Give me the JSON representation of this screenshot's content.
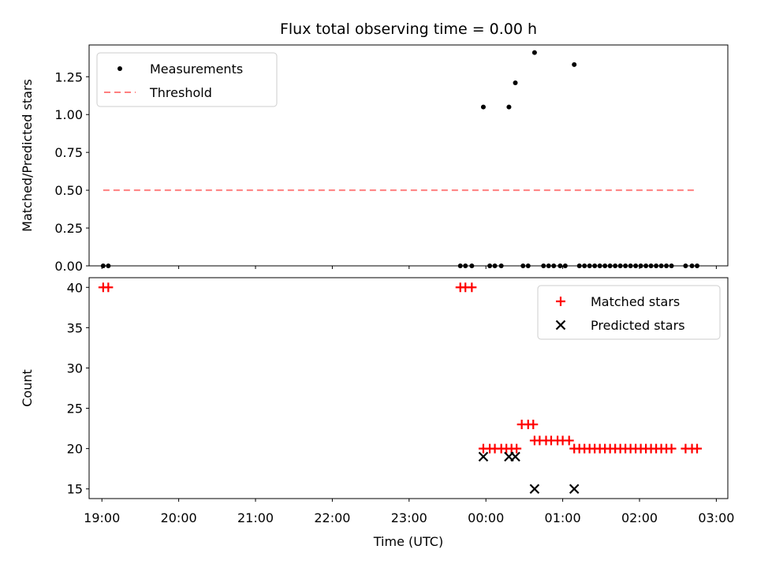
{
  "chart_data": [
    {
      "type": "scatter",
      "title": "Flux total observing time = 0.00 h",
      "xlabel": "",
      "ylabel": "Matched/Predicted stars",
      "x_axis_type": "time",
      "xlim": [
        "18:50",
        "03:09"
      ],
      "ylim": [
        0,
        1.46
      ],
      "yticks": [
        0.0,
        0.25,
        0.5,
        0.75,
        1.0,
        1.25
      ],
      "ytick_labels": [
        "0.00",
        "0.25",
        "0.50",
        "0.75",
        "1.00",
        "1.25"
      ],
      "legend_position": "upper left",
      "series": [
        {
          "name": "Measurements",
          "marker": "dot",
          "color": "#000000",
          "points": [
            [
              "19:01",
              0
            ],
            [
              "19:05",
              0
            ],
            [
              "23:40",
              0
            ],
            [
              "23:44",
              0
            ],
            [
              "23:49",
              0
            ],
            [
              "23:58",
              1.05
            ],
            [
              "00:03",
              0
            ],
            [
              "00:07",
              0
            ],
            [
              "00:12",
              0
            ],
            [
              "00:18",
              1.05
            ],
            [
              "00:23",
              1.21
            ],
            [
              "00:29",
              0
            ],
            [
              "00:33",
              0
            ],
            [
              "00:38",
              1.41
            ],
            [
              "00:45",
              0
            ],
            [
              "00:49",
              0
            ],
            [
              "00:53",
              0
            ],
            [
              "00:58",
              0
            ],
            [
              "01:02",
              0
            ],
            [
              "01:09",
              1.33
            ],
            [
              "01:13",
              0
            ],
            [
              "01:17",
              0
            ],
            [
              "01:21",
              0
            ],
            [
              "01:25",
              0
            ],
            [
              "01:29",
              0
            ],
            [
              "01:33",
              0
            ],
            [
              "01:37",
              0
            ],
            [
              "01:41",
              0
            ],
            [
              "01:45",
              0
            ],
            [
              "01:49",
              0
            ],
            [
              "01:53",
              0
            ],
            [
              "01:57",
              0
            ],
            [
              "02:01",
              0
            ],
            [
              "02:05",
              0
            ],
            [
              "02:09",
              0
            ],
            [
              "02:13",
              0
            ],
            [
              "02:17",
              0
            ],
            [
              "02:21",
              0
            ],
            [
              "02:25",
              0
            ],
            [
              "02:36",
              0
            ],
            [
              "02:41",
              0
            ],
            [
              "02:45",
              0
            ]
          ]
        },
        {
          "name": "Threshold",
          "marker": "dashed-line",
          "color": "#ff7f7f",
          "points": [
            [
              "19:01",
              0.5
            ],
            [
              "02:45",
              0.5
            ]
          ]
        }
      ]
    },
    {
      "type": "scatter",
      "title": "",
      "xlabel": "Time (UTC)",
      "ylabel": "Count",
      "x_axis_type": "time",
      "xlim": [
        "18:50",
        "03:09"
      ],
      "ylim": [
        13.8,
        41.2
      ],
      "yticks": [
        15,
        20,
        25,
        30,
        35,
        40
      ],
      "ytick_labels": [
        "15",
        "20",
        "25",
        "30",
        "35",
        "40"
      ],
      "xticks": [
        "19:00",
        "20:00",
        "21:00",
        "22:00",
        "23:00",
        "00:00",
        "01:00",
        "02:00",
        "03:00"
      ],
      "xtick_labels": [
        "19:00",
        "20:00",
        "21:00",
        "22:00",
        "23:00",
        "00:00",
        "01:00",
        "02:00",
        "03:00"
      ],
      "legend_position": "upper right",
      "series": [
        {
          "name": "Matched stars",
          "marker": "plus",
          "color": "#ff0000",
          "points": [
            [
              "19:01",
              40
            ],
            [
              "19:05",
              40
            ],
            [
              "23:40",
              40
            ],
            [
              "23:44",
              40
            ],
            [
              "23:49",
              40
            ],
            [
              "23:58",
              20
            ],
            [
              "24:03",
              20
            ],
            [
              "24:07",
              20
            ],
            [
              "24:12",
              20
            ],
            [
              "24:16",
              20
            ],
            [
              "24:20",
              20
            ],
            [
              "24:24",
              20
            ],
            [
              "24:28",
              23
            ],
            [
              "24:33",
              23
            ],
            [
              "24:37",
              23
            ],
            [
              "24:38",
              21
            ],
            [
              "24:42",
              21
            ],
            [
              "24:47",
              21
            ],
            [
              "24:51",
              21
            ],
            [
              "24:56",
              21
            ],
            [
              "25:00",
              21
            ],
            [
              "25:05",
              21
            ],
            [
              "25:09",
              20
            ],
            [
              "25:13",
              20
            ],
            [
              "25:17",
              20
            ],
            [
              "25:21",
              20
            ],
            [
              "25:25",
              20
            ],
            [
              "25:29",
              20
            ],
            [
              "25:33",
              20
            ],
            [
              "25:37",
              20
            ],
            [
              "25:41",
              20
            ],
            [
              "25:45",
              20
            ],
            [
              "25:49",
              20
            ],
            [
              "25:53",
              20
            ],
            [
              "25:57",
              20
            ],
            [
              "26:01",
              20
            ],
            [
              "26:05",
              20
            ],
            [
              "26:09",
              20
            ],
            [
              "26:13",
              20
            ],
            [
              "26:17",
              20
            ],
            [
              "26:21",
              20
            ],
            [
              "26:25",
              20
            ],
            [
              "26:36",
              20
            ],
            [
              "26:41",
              20
            ],
            [
              "26:45",
              20
            ]
          ]
        },
        {
          "name": "Predicted stars",
          "marker": "x",
          "color": "#000000",
          "points": [
            [
              "23:58",
              19
            ],
            [
              "24:18",
              19
            ],
            [
              "24:23",
              19
            ],
            [
              "24:38",
              15
            ],
            [
              "25:09",
              15
            ]
          ]
        }
      ]
    }
  ]
}
